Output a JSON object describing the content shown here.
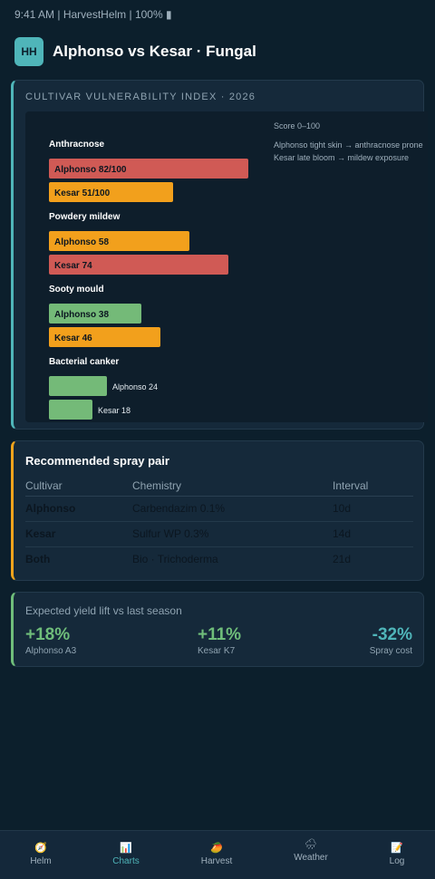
{
  "status_bar": "9:41 AM | HarvestHelm | 100% ▮",
  "header": {
    "logo": "HH",
    "title": "Alphonso vs Kesar · Fungal"
  },
  "colors": {
    "high": "#d05a55",
    "medium": "#f2a01c",
    "low": "#74ba78",
    "accent": "#4fb5b9"
  },
  "chart_data": {
    "type": "bar",
    "title": "CULTIVAR VULNERABILITY INDEX · 2026",
    "scale_note": "Score 0–100",
    "notes": [
      "Alphonso tight skin → anthracnose prone",
      "Kesar late bloom → mildew exposure"
    ],
    "xlim": [
      0,
      100
    ],
    "groups": [
      {
        "name": "Anthracnose",
        "bars": [
          {
            "cultivar": "Alphonso",
            "label": "Alphonso 82/100",
            "value": 82,
            "level": "high"
          },
          {
            "cultivar": "Kesar",
            "label": "Kesar 51/100",
            "value": 51,
            "level": "medium"
          }
        ]
      },
      {
        "name": "Powdery mildew",
        "bars": [
          {
            "cultivar": "Alphonso",
            "label": "Alphonso 58",
            "value": 58,
            "level": "medium"
          },
          {
            "cultivar": "Kesar",
            "label": "Kesar 74",
            "value": 74,
            "level": "high"
          }
        ]
      },
      {
        "name": "Sooty mould",
        "bars": [
          {
            "cultivar": "Alphonso",
            "label": "Alphonso 38",
            "value": 38,
            "level": "low"
          },
          {
            "cultivar": "Kesar",
            "label": "Kesar 46",
            "value": 46,
            "level": "medium"
          }
        ]
      },
      {
        "name": "Bacterial canker",
        "bars": [
          {
            "cultivar": "Alphonso",
            "label": "Alphonso 24",
            "value": 24,
            "level": "low"
          },
          {
            "cultivar": "Kesar",
            "label": "Kesar 18",
            "value": 18,
            "level": "low"
          }
        ]
      }
    ]
  },
  "spray": {
    "title": "Recommended spray pair",
    "headers": [
      "Cultivar",
      "Chemistry",
      "Interval"
    ],
    "rows": [
      {
        "cultivar": "Alphonso",
        "chemistry": "Carbendazim 0.1%",
        "interval": "10d"
      },
      {
        "cultivar": "Kesar",
        "chemistry": "Sulfur WP 0.3%",
        "interval": "14d"
      },
      {
        "cultivar": "Both",
        "chemistry": "Bio · Trichoderma",
        "interval": "21d"
      }
    ]
  },
  "yield": {
    "title": "Expected yield lift vs last season",
    "kpis": [
      {
        "value": "+18%",
        "label": "Alphonso A3",
        "color": "#6fbd7a"
      },
      {
        "value": "+11%",
        "label": "Kesar K7",
        "color": "#6fbd7a"
      },
      {
        "value": "-32%",
        "label": "Spray cost",
        "color": "#4fb5b9"
      }
    ]
  },
  "tabs": [
    {
      "icon": "🧭",
      "label": "Helm",
      "icon_name": "compass-icon"
    },
    {
      "icon": "📊",
      "label": "Charts",
      "icon_name": "bar-chart-icon"
    },
    {
      "icon": "🥭",
      "label": "Harvest",
      "icon_name": "mango-icon"
    },
    {
      "icon": "🌧",
      "label": "Weather",
      "icon_name": "rain-cloud-icon"
    },
    {
      "icon": "📝",
      "label": "Log",
      "icon_name": "notepad-icon"
    }
  ],
  "active_tab": "Charts"
}
